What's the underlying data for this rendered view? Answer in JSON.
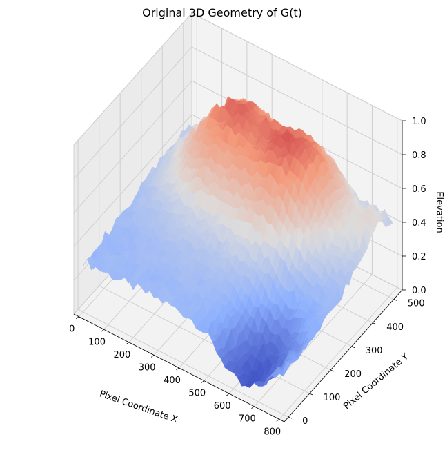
{
  "chart_data": {
    "type": "surface-3d",
    "title": "Original 3D Geometry of G(t)",
    "xlabel": "Pixel Coordinate X",
    "ylabel": "Pixel Coordinate Y",
    "zlabel": "Elevation",
    "xlim": [
      -20,
      820
    ],
    "ylim": [
      -20,
      540
    ],
    "zlim": [
      0,
      1
    ],
    "xticks": [
      "0",
      "100",
      "200",
      "300",
      "400",
      "500",
      "600",
      "700",
      "800"
    ],
    "yticks": [
      "0",
      "100",
      "200",
      "300",
      "400",
      "500"
    ],
    "zticks": [
      "0.0",
      "0.2",
      "0.4",
      "0.6",
      "0.8",
      "1.0"
    ],
    "colormap": "coolwarm",
    "colormap_stops": [
      "#3b4cc0",
      "#8db0fe",
      "#dddcdc",
      "#f49a7b",
      "#b40426"
    ],
    "grid": true,
    "surface_features": [
      {
        "kind": "peak",
        "x": 230,
        "y": 420,
        "z": 0.78
      },
      {
        "kind": "peak",
        "x": 530,
        "y": 390,
        "z": 0.82
      },
      {
        "kind": "minor-peak",
        "x": 780,
        "y": 450,
        "z": 0.45
      },
      {
        "kind": "trough",
        "x": 640,
        "y": 60,
        "z": 0.02
      },
      {
        "kind": "base-level",
        "z": 0.3
      }
    ]
  }
}
